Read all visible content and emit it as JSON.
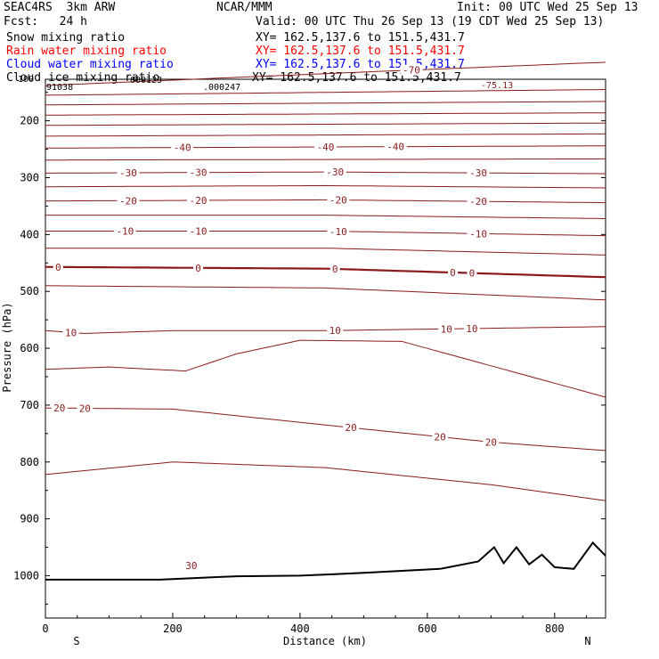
{
  "header": {
    "model": "SEAC4RS  3km ARW",
    "org": "NCAR/MMM",
    "init": "Init: 00 UTC Wed 25 Sep 13",
    "fcst": "Fcst:   24 h",
    "valid": "Valid: 00 UTC Thu 26 Sep 13 (19 CDT Wed 25 Sep 13)",
    "fields": [
      {
        "name": "Snow mixing ratio",
        "xy": "XY= 162.5,137.6 to 151.5,431.7",
        "color": "#000000"
      },
      {
        "name": "Rain water mixing ratio",
        "xy": "XY= 162.5,137.6 to 151.5,431.7",
        "color": "#ff0000"
      },
      {
        "name": "Cloud water mixing ratio",
        "xy": "XY= 162.5,137.6 to 151.5,431.7",
        "color": "#0000ff"
      },
      {
        "name": "Cloud ice mixing ratio",
        "xy": "XY= 162.5,137.6 to 151.5,431.7",
        "color": "#000000"
      }
    ]
  },
  "chart_data": {
    "type": "line",
    "title": "",
    "xlabel": "Distance (km)",
    "ylabel": "Pressure (hPa)",
    "xlim": [
      0,
      880
    ],
    "ylim": [
      1050,
      125
    ],
    "x_ticks": [
      0,
      200,
      400,
      600,
      800
    ],
    "y_ticks": [
      200,
      300,
      400,
      500,
      600,
      700,
      800,
      900,
      1000
    ],
    "y_axis_extra_label": "100",
    "x_end_labels": {
      "left": "S",
      "right": "N"
    },
    "top_annotations": [
      "91038",
      "000123",
      ".000247",
      "-75.13"
    ],
    "contour_color": "#8b1a1a",
    "contour_interval": 5,
    "isotherms": [
      {
        "value": -70,
        "points": [
          [
            0,
            138
          ],
          [
            440,
            117
          ],
          [
            880,
            97
          ]
        ],
        "labels": [
          {
            "x": 575,
            "text": "-70"
          }
        ]
      },
      {
        "value": -65,
        "points": [
          [
            0,
            155
          ],
          [
            440,
            150
          ],
          [
            880,
            145
          ]
        ],
        "labels": []
      },
      {
        "value": -60,
        "points": [
          [
            0,
            172
          ],
          [
            440,
            169
          ],
          [
            880,
            166
          ]
        ],
        "labels": []
      },
      {
        "value": -55,
        "points": [
          [
            0,
            190
          ],
          [
            440,
            188
          ],
          [
            880,
            186
          ]
        ],
        "labels": []
      },
      {
        "value": -50,
        "points": [
          [
            0,
            208
          ],
          [
            440,
            206
          ],
          [
            880,
            204
          ]
        ],
        "labels": []
      },
      {
        "value": -45,
        "points": [
          [
            0,
            227
          ],
          [
            440,
            225
          ],
          [
            880,
            223
          ]
        ],
        "labels": []
      },
      {
        "value": -40,
        "points": [
          [
            0,
            248
          ],
          [
            440,
            246
          ],
          [
            880,
            244
          ]
        ],
        "labels": [
          {
            "x": 215,
            "text": "-40"
          },
          {
            "x": 440,
            "text": "-40"
          },
          {
            "x": 550,
            "text": "-40"
          }
        ]
      },
      {
        "value": -35,
        "points": [
          [
            0,
            269
          ],
          [
            440,
            268
          ],
          [
            880,
            267
          ]
        ],
        "labels": []
      },
      {
        "value": -30,
        "points": [
          [
            0,
            292
          ],
          [
            440,
            290
          ],
          [
            880,
            293
          ]
        ],
        "labels": [
          {
            "x": 130,
            "text": "-30"
          },
          {
            "x": 240,
            "text": "-30"
          },
          {
            "x": 455,
            "text": "-30"
          },
          {
            "x": 680,
            "text": "-30"
          }
        ]
      },
      {
        "value": -25,
        "points": [
          [
            0,
            316
          ],
          [
            440,
            314
          ],
          [
            880,
            318
          ]
        ],
        "labels": []
      },
      {
        "value": -20,
        "points": [
          [
            0,
            341
          ],
          [
            440,
            339
          ],
          [
            880,
            344
          ]
        ],
        "labels": [
          {
            "x": 130,
            "text": "-20"
          },
          {
            "x": 240,
            "text": "-20"
          },
          {
            "x": 460,
            "text": "-20"
          },
          {
            "x": 680,
            "text": "-20"
          }
        ]
      },
      {
        "value": -15,
        "points": [
          [
            0,
            366
          ],
          [
            440,
            366
          ],
          [
            880,
            372
          ]
        ],
        "labels": []
      },
      {
        "value": -10,
        "points": [
          [
            0,
            394
          ],
          [
            440,
            394
          ],
          [
            880,
            402
          ]
        ],
        "labels": [
          {
            "x": 125,
            "text": "-10"
          },
          {
            "x": 240,
            "text": "-10"
          },
          {
            "x": 460,
            "text": "-10"
          },
          {
            "x": 680,
            "text": "-10"
          }
        ]
      },
      {
        "value": -5,
        "points": [
          [
            0,
            424
          ],
          [
            440,
            424
          ],
          [
            880,
            436
          ]
        ],
        "labels": []
      },
      {
        "value": 0,
        "points": [
          [
            0,
            457
          ],
          [
            440,
            460
          ],
          [
            880,
            475
          ]
        ],
        "labels": [
          {
            "x": 20,
            "text": "0"
          },
          {
            "x": 240,
            "text": "0"
          },
          {
            "x": 455,
            "text": "0"
          },
          {
            "x": 640,
            "text": "0"
          },
          {
            "x": 670,
            "text": "0"
          }
        ],
        "bold": true
      },
      {
        "value": 5,
        "points": [
          [
            0,
            490
          ],
          [
            440,
            494
          ],
          [
            880,
            515
          ]
        ],
        "labels": []
      },
      {
        "value": 10,
        "points": [
          [
            0,
            569
          ],
          [
            60,
            574
          ],
          [
            200,
            569
          ],
          [
            440,
            569
          ],
          [
            880,
            562
          ]
        ],
        "labels": [
          {
            "x": 40,
            "text": "10"
          },
          {
            "x": 455,
            "text": "10"
          },
          {
            "x": 630,
            "text": "10"
          },
          {
            "x": 670,
            "text": "10"
          }
        ]
      },
      {
        "value": 15,
        "points": [
          [
            0,
            637
          ],
          [
            100,
            633
          ],
          [
            220,
            640
          ],
          [
            300,
            610
          ],
          [
            400,
            586
          ],
          [
            560,
            588
          ],
          [
            880,
            686
          ]
        ],
        "labels": []
      },
      {
        "value": 20,
        "points": [
          [
            0,
            705
          ],
          [
            200,
            707
          ],
          [
            440,
            735
          ],
          [
            700,
            765
          ],
          [
            880,
            780
          ]
        ],
        "labels": [
          {
            "x": 22,
            "text": "20"
          },
          {
            "x": 62,
            "text": "20"
          },
          {
            "x": 480,
            "text": "20"
          },
          {
            "x": 620,
            "text": "20"
          },
          {
            "x": 700,
            "text": "20"
          }
        ]
      },
      {
        "value": 25,
        "points": [
          [
            0,
            822
          ],
          [
            200,
            800
          ],
          [
            440,
            810
          ],
          [
            700,
            840
          ],
          [
            880,
            868
          ]
        ],
        "labels": []
      }
    ],
    "ice_mixing_ratio_label": {
      "x": 220,
      "p": 988,
      "text": "30"
    },
    "terrain": {
      "color": "#000000",
      "points": [
        [
          0,
          1007
        ],
        [
          180,
          1007
        ],
        [
          300,
          1001
        ],
        [
          400,
          1000
        ],
        [
          500,
          995
        ],
        [
          620,
          988
        ],
        [
          680,
          975
        ],
        [
          705,
          950
        ],
        [
          720,
          978
        ],
        [
          740,
          950
        ],
        [
          760,
          980
        ],
        [
          780,
          963
        ],
        [
          800,
          985
        ],
        [
          830,
          988
        ],
        [
          860,
          942
        ],
        [
          880,
          965
        ]
      ]
    }
  }
}
